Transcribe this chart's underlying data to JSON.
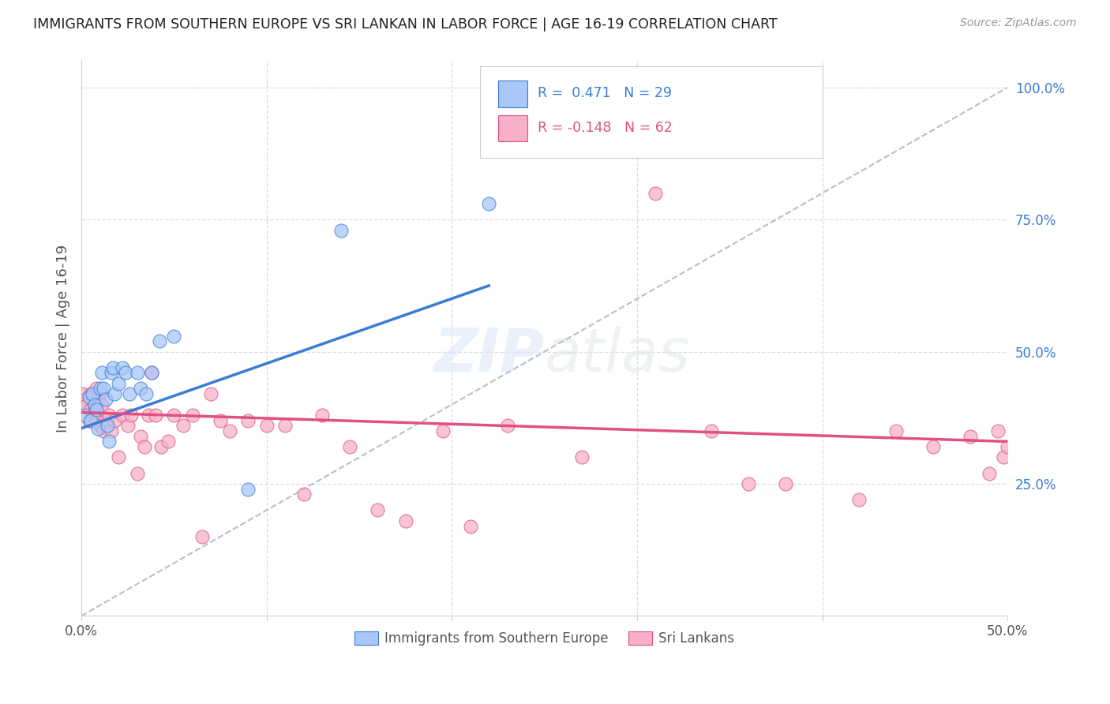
{
  "title": "IMMIGRANTS FROM SOUTHERN EUROPE VS SRI LANKAN IN LABOR FORCE | AGE 16-19 CORRELATION CHART",
  "source": "Source: ZipAtlas.com",
  "ylabel": "In Labor Force | Age 16-19",
  "xlim": [
    0.0,
    0.5
  ],
  "ylim": [
    0.0,
    1.05
  ],
  "ytick_labels_right": [
    "25.0%",
    "50.0%",
    "75.0%",
    "100.0%"
  ],
  "ytick_positions_right": [
    0.25,
    0.5,
    0.75,
    1.0
  ],
  "blue_R": 0.471,
  "blue_N": 29,
  "pink_R": -0.148,
  "pink_N": 62,
  "blue_color": "#a8c8f8",
  "pink_color": "#f8b0c8",
  "blue_line_color": "#3a7bd5",
  "pink_line_color": "#e05080",
  "diagonal_color": "#b0b8c8",
  "background_color": "#ffffff",
  "grid_color": "#d8dde8",
  "title_color": "#222222",
  "source_color": "#999999",
  "legend_label_blue": "Immigrants from Southern Europe",
  "legend_label_pink": "Sri Lankans",
  "blue_scatter_x": [
    0.002,
    0.004,
    0.005,
    0.006,
    0.007,
    0.008,
    0.009,
    0.01,
    0.011,
    0.012,
    0.013,
    0.014,
    0.015,
    0.016,
    0.017,
    0.018,
    0.02,
    0.022,
    0.024,
    0.026,
    0.03,
    0.032,
    0.035,
    0.038,
    0.042,
    0.05,
    0.09,
    0.14,
    0.22
  ],
  "blue_scatter_y": [
    0.38,
    0.415,
    0.37,
    0.42,
    0.4,
    0.39,
    0.355,
    0.43,
    0.46,
    0.43,
    0.41,
    0.36,
    0.33,
    0.46,
    0.47,
    0.42,
    0.44,
    0.47,
    0.46,
    0.42,
    0.46,
    0.43,
    0.42,
    0.46,
    0.52,
    0.53,
    0.24,
    0.73,
    0.78
  ],
  "pink_scatter_x": [
    0.001,
    0.002,
    0.003,
    0.004,
    0.005,
    0.005,
    0.006,
    0.007,
    0.008,
    0.008,
    0.009,
    0.01,
    0.01,
    0.011,
    0.012,
    0.013,
    0.015,
    0.016,
    0.018,
    0.02,
    0.022,
    0.025,
    0.027,
    0.03,
    0.032,
    0.034,
    0.036,
    0.038,
    0.04,
    0.043,
    0.047,
    0.05,
    0.055,
    0.06,
    0.065,
    0.07,
    0.075,
    0.08,
    0.09,
    0.1,
    0.11,
    0.12,
    0.13,
    0.145,
    0.16,
    0.175,
    0.195,
    0.21,
    0.23,
    0.27,
    0.31,
    0.34,
    0.36,
    0.38,
    0.42,
    0.44,
    0.46,
    0.48,
    0.49,
    0.495,
    0.498,
    0.5
  ],
  "pink_scatter_y": [
    0.42,
    0.41,
    0.4,
    0.37,
    0.42,
    0.39,
    0.38,
    0.4,
    0.43,
    0.37,
    0.41,
    0.36,
    0.42,
    0.4,
    0.35,
    0.37,
    0.38,
    0.35,
    0.37,
    0.3,
    0.38,
    0.36,
    0.38,
    0.27,
    0.34,
    0.32,
    0.38,
    0.46,
    0.38,
    0.32,
    0.33,
    0.38,
    0.36,
    0.38,
    0.15,
    0.42,
    0.37,
    0.35,
    0.37,
    0.36,
    0.36,
    0.23,
    0.38,
    0.32,
    0.2,
    0.18,
    0.35,
    0.17,
    0.36,
    0.3,
    0.8,
    0.35,
    0.25,
    0.25,
    0.22,
    0.35,
    0.32,
    0.34,
    0.27,
    0.35,
    0.3,
    0.32
  ],
  "blue_line_x0": 0.0,
  "blue_line_y0": 0.355,
  "blue_line_x1": 0.22,
  "blue_line_y1": 0.625,
  "pink_line_x0": 0.0,
  "pink_line_y0": 0.385,
  "pink_line_x1": 0.5,
  "pink_line_y1": 0.33
}
